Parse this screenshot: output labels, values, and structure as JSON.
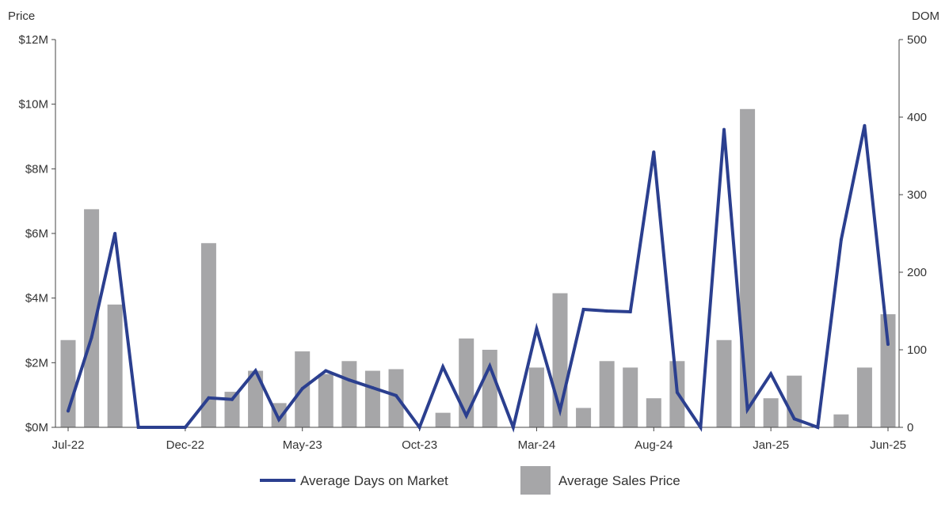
{
  "chart_data": {
    "type": "bar+line",
    "y_left_label": "Price",
    "y_right_label": "DOM",
    "y_left_ticks": [
      "$0M",
      "$2M",
      "$4M",
      "$6M",
      "$8M",
      "$10M",
      "$12M"
    ],
    "y_left_range": [
      0,
      12
    ],
    "y_right_ticks": [
      "0",
      "100",
      "200",
      "300",
      "400",
      "500"
    ],
    "y_right_range": [
      0,
      500
    ],
    "categories": [
      "Jul-22",
      "Aug-22",
      "Sep-22",
      "Oct-22",
      "Nov-22",
      "Dec-22",
      "Jan-23",
      "Feb-23",
      "Mar-23",
      "Apr-23",
      "May-23",
      "Jun-23",
      "Jul-23",
      "Aug-23",
      "Sep-23",
      "Oct-23",
      "Nov-23",
      "Dec-23",
      "Jan-24",
      "Feb-24",
      "Mar-24",
      "Apr-24",
      "May-24",
      "Jun-24",
      "Jul-24",
      "Aug-24",
      "Sep-24",
      "Oct-24",
      "Nov-24",
      "Dec-24",
      "Jan-25",
      "Feb-25",
      "Mar-25",
      "Apr-25",
      "May-25",
      "Jun-25"
    ],
    "x_tick_labels": [
      {
        "index": 0,
        "label": "Jul-22"
      },
      {
        "index": 5,
        "label": "Dec-22"
      },
      {
        "index": 10,
        "label": "May-23"
      },
      {
        "index": 15,
        "label": "Oct-23"
      },
      {
        "index": 20,
        "label": "Mar-24"
      },
      {
        "index": 25,
        "label": "Aug-24"
      },
      {
        "index": 30,
        "label": "Jan-25"
      },
      {
        "index": 35,
        "label": "Jun-25"
      }
    ],
    "series": [
      {
        "name": "Average Sales Price",
        "kind": "bar",
        "axis": "left",
        "unit": "$M",
        "color": "#a6a6a8",
        "values": [
          2.7,
          6.75,
          3.8,
          0,
          0,
          0,
          5.7,
          1.1,
          1.75,
          0.75,
          2.35,
          1.65,
          2.05,
          1.75,
          1.8,
          0,
          0.45,
          2.75,
          2.4,
          0,
          1.85,
          4.15,
          0.6,
          2.05,
          1.85,
          0.9,
          2.05,
          0,
          2.7,
          9.85,
          0.9,
          1.6,
          0,
          0.4,
          1.85,
          3.5
        ]
      },
      {
        "name": "Average Days on Market",
        "kind": "line",
        "axis": "right",
        "unit": "days",
        "color": "#2b3f8f",
        "values": [
          21,
          116,
          250,
          0,
          0,
          0,
          38,
          36,
          73,
          10,
          50,
          73,
          61,
          51,
          41,
          0,
          78,
          15,
          79,
          0,
          127,
          22,
          152,
          150,
          149,
          355,
          45,
          0,
          384,
          23,
          69,
          11,
          0,
          242,
          389,
          107
        ]
      }
    ],
    "legend": {
      "position": "bottom-center",
      "items": [
        {
          "label": "Average Days on Market",
          "kind": "line",
          "color": "#2b3f8f"
        },
        {
          "label": "Average Sales Price",
          "kind": "bar",
          "color": "#a6a6a8"
        }
      ]
    },
    "grid": false
  }
}
